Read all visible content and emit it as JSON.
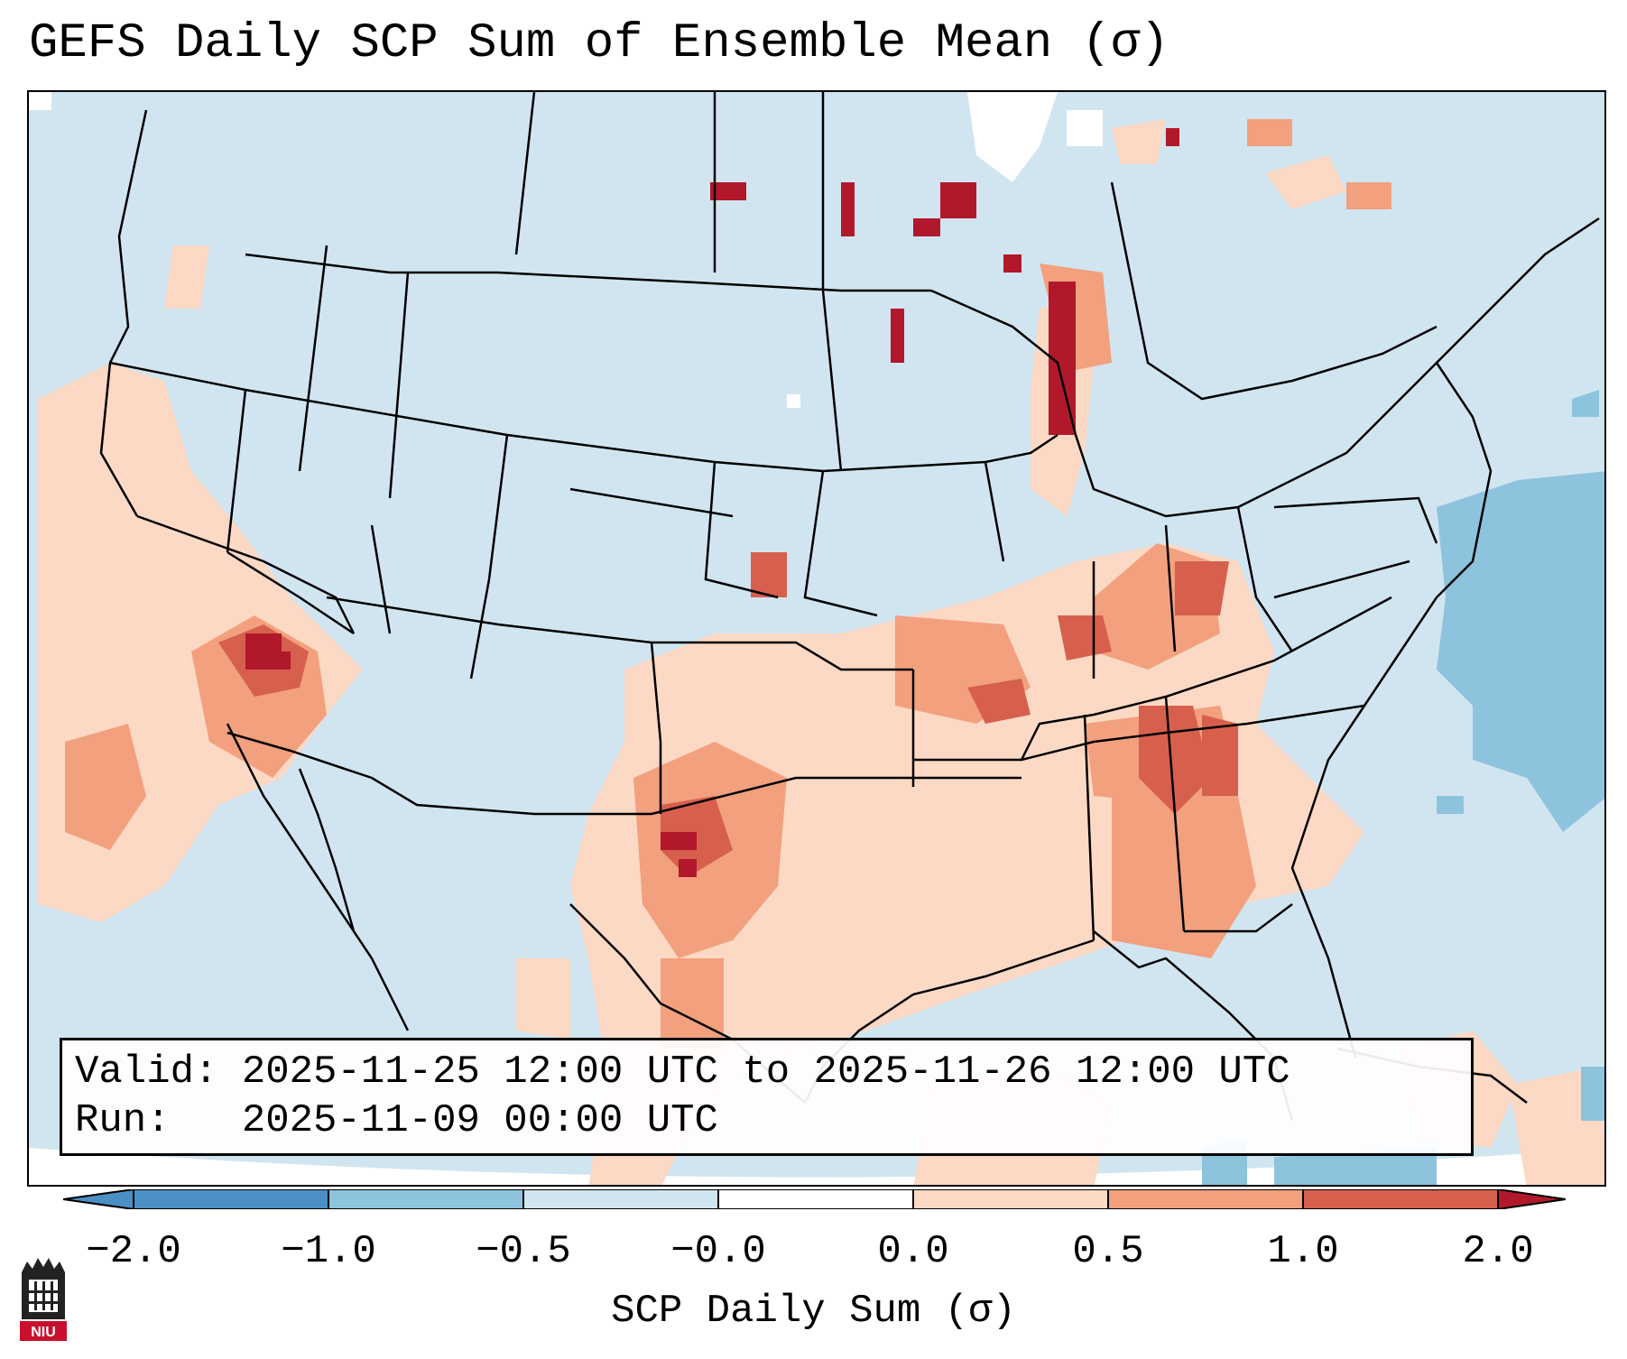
{
  "title": "GEFS Daily SCP Sum of Ensemble Mean (σ)",
  "info": {
    "valid_label": "Valid:",
    "valid_value": "2025-11-25 12:00 UTC to 2025-11-26 12:00 UTC",
    "run_label": "Run:",
    "run_value": "2025-11-09 00:00 UTC"
  },
  "colorbar": {
    "label": "SCP Daily Sum (σ)",
    "ticks": [
      "−2.0",
      "−1.0",
      "−0.5",
      "−0.0",
      "0.0",
      "0.5",
      "1.0",
      "2.0"
    ],
    "bins": [
      {
        "name": "below-2.0",
        "color": "#4a90c4"
      },
      {
        "name": "-2.0 to -1.0",
        "color": "#4a90c4"
      },
      {
        "name": "-1.0 to -0.5",
        "color": "#8ec3de"
      },
      {
        "name": "-0.5 to 0.0",
        "color": "#d1e5f0"
      },
      {
        "name": "0.0",
        "color": "#ffffff"
      },
      {
        "name": "0.0 to 0.5",
        "color": "#fcd9c4"
      },
      {
        "name": "0.5 to 1.0",
        "color": "#f2a07e"
      },
      {
        "name": "1.0 to 2.0",
        "color": "#d6604d"
      },
      {
        "name": "above 2.0",
        "color": "#b2182b"
      }
    ]
  },
  "logo": {
    "text": "NIU"
  },
  "colors": {
    "background_field": "#d1e5f0",
    "light_red": "#fcd9c4",
    "mid_red": "#f2a07e",
    "strong_red": "#d6604d",
    "dark_red": "#b2182b",
    "light_blue": "#8ec3de"
  }
}
